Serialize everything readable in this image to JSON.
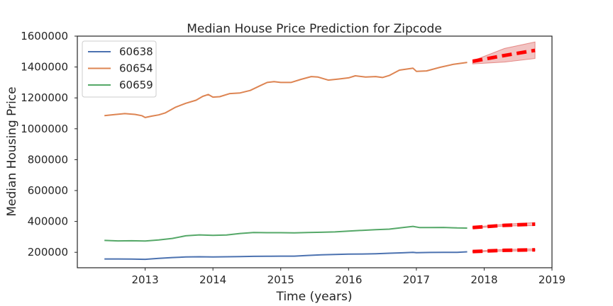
{
  "chart_data": {
    "type": "line",
    "title": "Median House Price Prediction for Zipcode",
    "xlabel": "Time (years)",
    "ylabel": "Median Housing Price",
    "xlim": [
      2012.0,
      2019.0
    ],
    "ylim": [
      100000,
      1600000
    ],
    "x_ticks": [
      2013,
      2014,
      2015,
      2016,
      2017,
      2018,
      2019
    ],
    "y_ticks": [
      200000,
      400000,
      600000,
      800000,
      1000000,
      1200000,
      1400000,
      1600000
    ],
    "grid": false,
    "legend_position": "top-left",
    "series": [
      {
        "name": "60638",
        "color": "#4c72b0",
        "x": [
          2012.4,
          2012.6,
          2012.8,
          2013.0,
          2013.2,
          2013.4,
          2013.6,
          2013.8,
          2014.0,
          2014.2,
          2014.4,
          2014.6,
          2014.8,
          2015.0,
          2015.2,
          2015.4,
          2015.6,
          2015.8,
          2016.0,
          2016.2,
          2016.4,
          2016.6,
          2016.8,
          2016.95,
          2017.0,
          2017.2,
          2017.4,
          2017.6,
          2017.75
        ],
        "y": [
          157000,
          157000,
          156500,
          154500,
          161000,
          166000,
          169500,
          171000,
          170000,
          171000,
          172500,
          174000,
          174500,
          175000,
          175000,
          180000,
          183500,
          186000,
          188000,
          189000,
          191000,
          194000,
          197000,
          200000,
          197500,
          199000,
          199500,
          200000,
          203000
        ]
      },
      {
        "name": "60654",
        "color": "#dd8452",
        "x": [
          2012.4,
          2012.55,
          2012.7,
          2012.85,
          2012.95,
          2013.0,
          2013.1,
          2013.2,
          2013.3,
          2013.45,
          2013.6,
          2013.75,
          2013.85,
          2013.93,
          2014.0,
          2014.1,
          2014.25,
          2014.4,
          2014.55,
          2014.7,
          2014.8,
          2014.9,
          2015.0,
          2015.15,
          2015.3,
          2015.45,
          2015.55,
          2015.7,
          2015.85,
          2016.0,
          2016.1,
          2016.25,
          2016.4,
          2016.5,
          2016.6,
          2016.75,
          2016.95,
          2017.0,
          2017.15,
          2017.35,
          2017.55,
          2017.75
        ],
        "y": [
          1085000,
          1092000,
          1098000,
          1093000,
          1085000,
          1073000,
          1082000,
          1090000,
          1103000,
          1140000,
          1165000,
          1185000,
          1210000,
          1222000,
          1205000,
          1208000,
          1228000,
          1232000,
          1248000,
          1280000,
          1300000,
          1305000,
          1300000,
          1300000,
          1320000,
          1338000,
          1335000,
          1315000,
          1322000,
          1330000,
          1343000,
          1335000,
          1338000,
          1332000,
          1345000,
          1380000,
          1392000,
          1372000,
          1375000,
          1398000,
          1418000,
          1430000
        ]
      },
      {
        "name": "60659",
        "color": "#55a868",
        "x": [
          2012.4,
          2012.6,
          2012.8,
          2013.0,
          2013.2,
          2013.4,
          2013.6,
          2013.8,
          2014.0,
          2014.2,
          2014.4,
          2014.6,
          2014.8,
          2015.0,
          2015.2,
          2015.4,
          2015.6,
          2015.8,
          2016.0,
          2016.2,
          2016.4,
          2016.6,
          2016.8,
          2016.95,
          2017.05,
          2017.2,
          2017.4,
          2017.6,
          2017.75
        ],
        "y": [
          277000,
          274000,
          275000,
          273000,
          280000,
          290000,
          307000,
          313000,
          310000,
          312000,
          322000,
          328000,
          327000,
          327000,
          326000,
          328000,
          330000,
          332000,
          337000,
          342000,
          347000,
          350000,
          360000,
          368000,
          360000,
          360000,
          361000,
          358000,
          357000
        ]
      }
    ],
    "forecasts": [
      {
        "series": "60638",
        "x": [
          2017.83,
          2018.3,
          2018.75
        ],
        "y": [
          205000,
          213000,
          216000
        ],
        "lower": [
          202000,
          208000,
          210000
        ],
        "upper": [
          208000,
          219000,
          222000
        ]
      },
      {
        "series": "60654",
        "x": [
          2017.83,
          2018.3,
          2018.75
        ],
        "y": [
          1437000,
          1475000,
          1508000
        ],
        "lower": [
          1420000,
          1432000,
          1455000
        ],
        "upper": [
          1440000,
          1520000,
          1562000
        ]
      },
      {
        "series": "60659",
        "x": [
          2017.83,
          2018.3,
          2018.75
        ],
        "y": [
          360000,
          375000,
          382000
        ],
        "lower": [
          357000,
          370000,
          373000
        ],
        "upper": [
          363000,
          382000,
          392000
        ]
      }
    ],
    "forecast_style": {
      "line_color": "#ff0000",
      "band_color": "#d9534f"
    }
  }
}
